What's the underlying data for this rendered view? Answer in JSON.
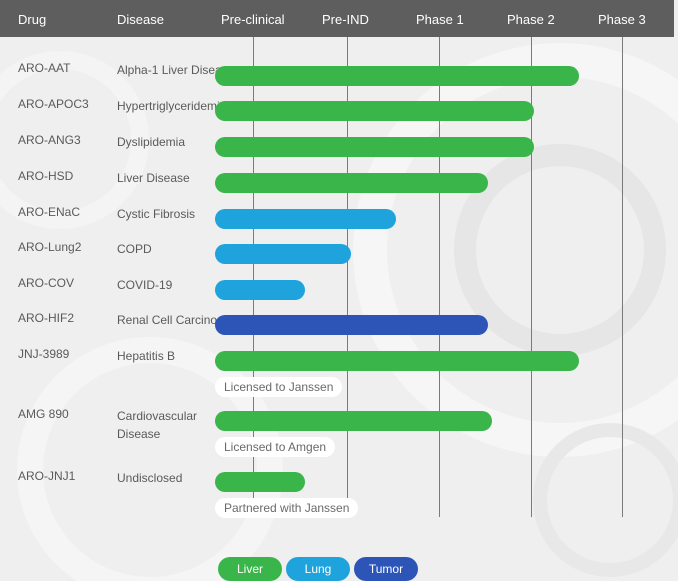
{
  "header": {
    "drug": "Drug",
    "disease": "Disease",
    "stages": [
      "Pre-clinical",
      "Pre-IND",
      "Phase 1",
      "Phase 2",
      "Phase 3"
    ]
  },
  "colors": {
    "Liver": "#3ab54a",
    "Lung": "#1ea3dd",
    "Tumor": "#2d55b7",
    "header": "#5e5e5e"
  },
  "chart_data": {
    "type": "bar",
    "orientation": "horizontal",
    "stage_axis": [
      "Pre-clinical",
      "Pre-IND",
      "Phase 1",
      "Phase 2",
      "Phase 3"
    ],
    "progress_unit": "stage columns completed (0 = start of Pre-clinical, 4 = Phase 3 line)",
    "programs": [
      {
        "drug": "ARO-AAT",
        "disease": "Alpha-1 Liver Disease",
        "category": "Liver",
        "progress": 3.5
      },
      {
        "drug": "ARO-APOC3",
        "disease": "Hypertriglyceridemia",
        "category": "Liver",
        "progress": 3.0
      },
      {
        "drug": "ARO-ANG3",
        "disease": "Dyslipidemia",
        "category": "Liver",
        "progress": 3.0
      },
      {
        "drug": "ARO-HSD",
        "disease": "Liver Disease",
        "category": "Liver",
        "progress": 2.5
      },
      {
        "drug": "ARO-ENaC",
        "disease": "Cystic Fibrosis",
        "category": "Lung",
        "progress": 1.5
      },
      {
        "drug": "ARO-Lung2",
        "disease": "COPD",
        "category": "Lung",
        "progress": 1.0
      },
      {
        "drug": "ARO-COV",
        "disease": "COVID-19",
        "category": "Lung",
        "progress": 0.5
      },
      {
        "drug": "ARO-HIF2",
        "disease": "Renal Cell Carcinoma",
        "category": "Tumor",
        "progress": 2.5
      },
      {
        "drug": "JNJ-3989",
        "disease": "Hepatitis B",
        "category": "Liver",
        "progress": 3.5,
        "note": "Licensed to Janssen"
      },
      {
        "drug": "AMG 890",
        "disease": "Cardiovascular Disease",
        "category": "Liver",
        "progress": 2.55,
        "note": "Licensed to Amgen"
      },
      {
        "drug": "ARO-JNJ1",
        "disease": "Undisclosed",
        "category": "Liver",
        "progress": 0.5,
        "note": "Partnered with Janssen"
      }
    ],
    "legend": [
      "Liver",
      "Lung",
      "Tumor"
    ],
    "legend_position": "bottom"
  }
}
